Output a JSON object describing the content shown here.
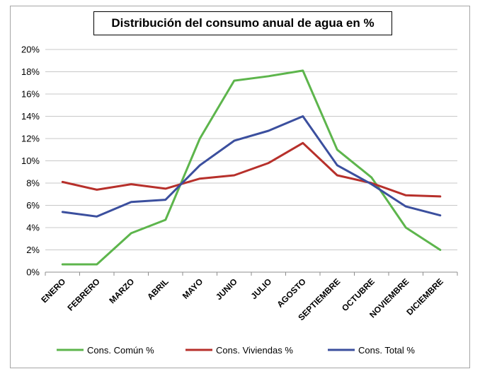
{
  "chart_data": {
    "type": "line",
    "title": "Distribución del consumo anual de agua en %",
    "xlabel": "",
    "ylabel": "",
    "ylim": [
      0,
      20
    ],
    "y_ticks": [
      "0%",
      "2%",
      "4%",
      "6%",
      "8%",
      "10%",
      "12%",
      "14%",
      "16%",
      "18%",
      "20%"
    ],
    "y_tick_values": [
      0,
      2,
      4,
      6,
      8,
      10,
      12,
      14,
      16,
      18,
      20
    ],
    "grid": "horizontal",
    "legend_position": "bottom",
    "categories": [
      "ENERO",
      "FEBRERO",
      "MARZO",
      "ABRIL",
      "MAYO",
      "JUNIO",
      "JULIO",
      "AGOSTO",
      "SEPTIEMBRE",
      "OCTUBRE",
      "NOVIEMBRE",
      "DICIEMBRE"
    ],
    "series": [
      {
        "name": "Cons. Común %",
        "color": "#5db54c",
        "values": [
          0.7,
          0.7,
          3.5,
          4.7,
          12.0,
          17.2,
          17.6,
          18.1,
          11.0,
          8.5,
          4.0,
          2.0
        ]
      },
      {
        "name": "Cons. Viviendas %",
        "color": "#b7302b",
        "values": [
          8.1,
          7.4,
          7.9,
          7.5,
          8.4,
          8.7,
          9.8,
          11.6,
          8.7,
          8.0,
          6.9,
          6.8
        ]
      },
      {
        "name": "Cons. Total %",
        "color": "#3b4f9e",
        "values": [
          5.4,
          5.0,
          6.3,
          6.5,
          9.6,
          11.8,
          12.7,
          14.0,
          9.6,
          7.9,
          5.9,
          5.1
        ]
      }
    ]
  }
}
